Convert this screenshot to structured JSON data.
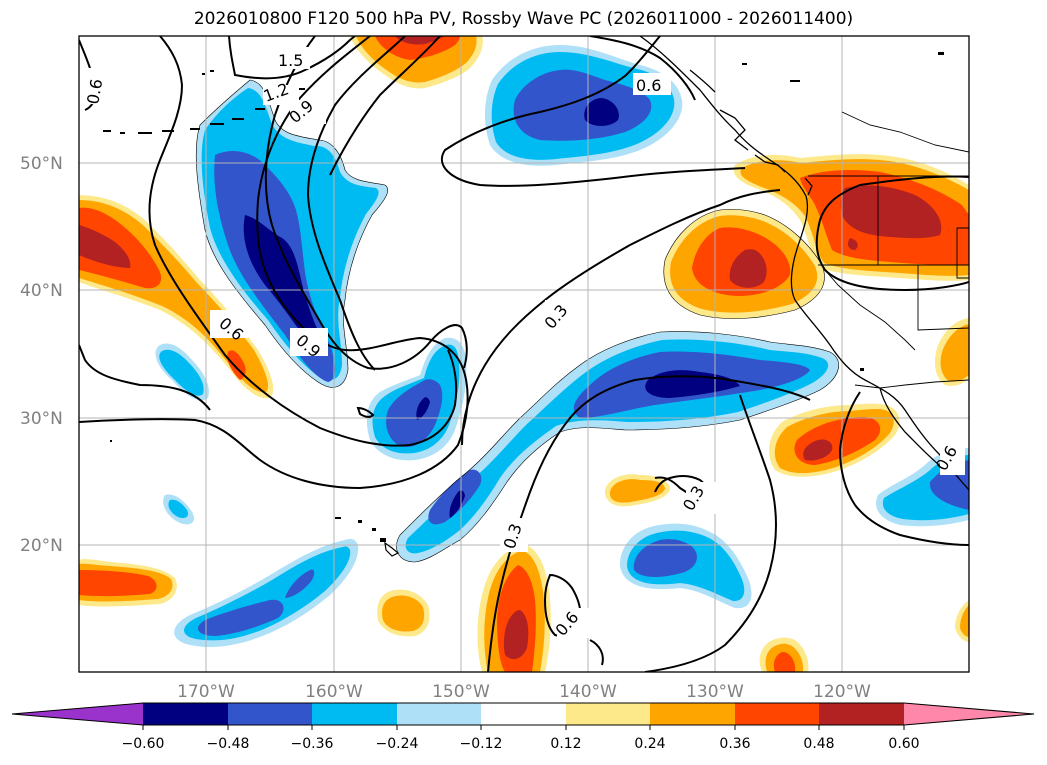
{
  "title": "2026010800 F120 500 hPa PV, Rossby Wave PC (2026011000 - 2026011400)",
  "map": {
    "lat_labels": [
      "50°N",
      "40°N",
      "30°N",
      "20°N"
    ],
    "lon_labels": [
      "170°W",
      "160°W",
      "150°W",
      "140°W",
      "130°W",
      "120°W"
    ],
    "contour_labels": [
      "1.5",
      "1.2",
      "0.9",
      "0.6",
      "0.6",
      "0.9",
      "0.3",
      "0.3",
      "0.3",
      "0.6",
      "0.6",
      "0.6"
    ]
  },
  "colorbar": {
    "ticks": [
      "−0.60",
      "−0.48",
      "−0.36",
      "−0.24",
      "−0.12",
      "0.12",
      "0.24",
      "0.36",
      "0.48",
      "0.60"
    ],
    "colors": [
      "#9933cc",
      "#000080",
      "#3355cc",
      "#00bbf2",
      "#aee0f8",
      "#ffffff",
      "#fde88a",
      "#ffa500",
      "#ff4500",
      "#b22222",
      "#ff88aa"
    ]
  },
  "colors": {
    "dark_navy": "#000080",
    "blue": "#3355cc",
    "cyan": "#00bbf2",
    "light_cyan": "#aee0f8",
    "light_yellow": "#fde88a",
    "orange": "#ffa500",
    "red_orange": "#ff4500",
    "dark_red": "#b22222"
  }
}
